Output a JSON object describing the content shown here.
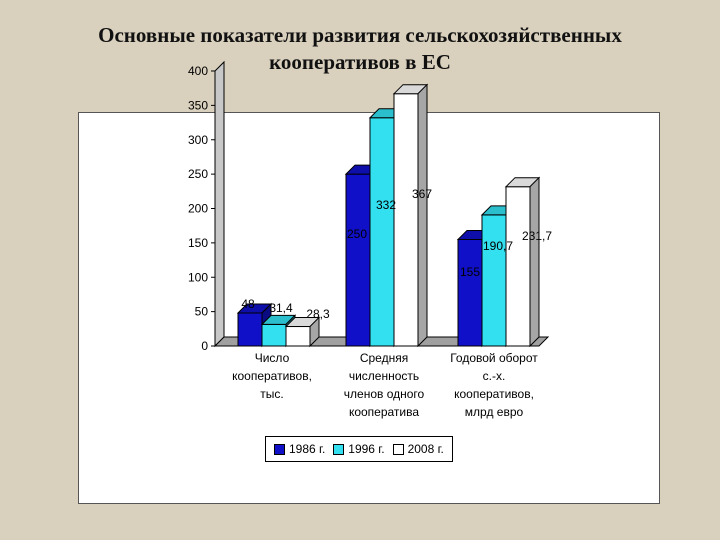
{
  "page": {
    "title_line1": "Основные показатели развития сельскохозяйственных",
    "title_line2": "кооперативов в ЕС"
  },
  "chart_data": {
    "type": "bar",
    "style": "3d-clustered",
    "title": "Основные показатели развития сельскохозяйственных кооперативов в ЕС",
    "categories": [
      [
        "Число",
        "кооперативов,",
        "тыс."
      ],
      [
        "Средняя",
        "численность",
        "членов одного",
        "кооператива"
      ],
      [
        "Годовой оборот",
        "с.-х.",
        "кооперативов,",
        "млрд евро"
      ]
    ],
    "series": [
      {
        "name": "1986 г.",
        "color": "#1010c8",
        "values": [
          48,
          250,
          155
        ],
        "labels": [
          "48",
          "250",
          "155"
        ]
      },
      {
        "name": "1996 г.",
        "color": "#33e0f0",
        "values": [
          31.4,
          332,
          190.7
        ],
        "labels": [
          "31,4",
          "332",
          "190,7"
        ]
      },
      {
        "name": "2008 г.",
        "color": "#ffffff",
        "values": [
          28.3,
          367,
          231.7
        ],
        "labels": [
          "28,3",
          "367",
          "231,7"
        ]
      }
    ],
    "yticks": [
      "0",
      "50",
      "100",
      "150",
      "200",
      "250",
      "300",
      "350",
      "400"
    ],
    "ylim": [
      0,
      400
    ],
    "grid": false,
    "legend_position": "bottom"
  }
}
